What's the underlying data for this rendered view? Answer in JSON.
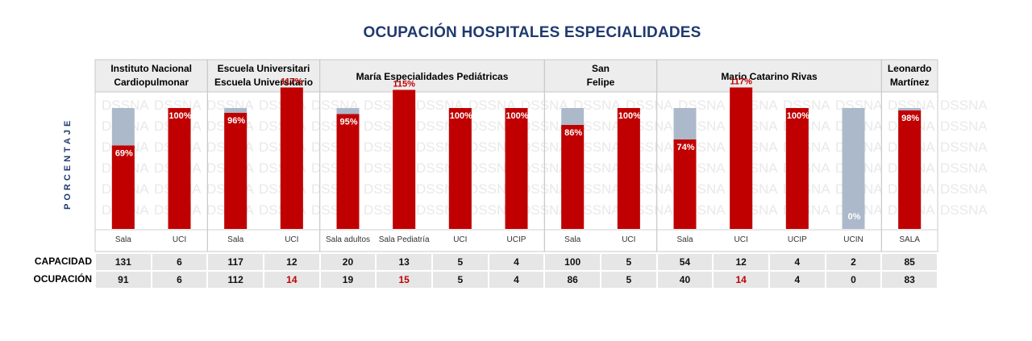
{
  "title": "OCUPACIÓN HOSPITALES ESPECIALIDADES",
  "ylabel": "PORCENTAJE",
  "watermark": "DSSNA",
  "colors": {
    "bar": "#c00000",
    "capacity": "#acb9ca",
    "title": "#1f3a6e",
    "over": "#c00000"
  },
  "table": {
    "capacidad_label": "CAPACIDAD",
    "ocupacion_label": "OCUPACIÓN"
  },
  "chart_data": {
    "type": "bar",
    "ylim": [
      0,
      100
    ],
    "hospitals": [
      {
        "name": "Instituto Nacional Cardiopulmonar",
        "categories": [
          "Sala",
          "UCI"
        ],
        "values": [
          69,
          100
        ],
        "labels": [
          "69%",
          "100%"
        ],
        "capacidad": [
          131,
          6
        ],
        "ocupacion": [
          91,
          6
        ]
      },
      {
        "name": "Escuela Universitario",
        "categories": [
          "Sala",
          "UCI"
        ],
        "values": [
          96,
          117
        ],
        "labels": [
          "96%",
          "117%"
        ],
        "capacidad": [
          117,
          12
        ],
        "ocupacion": [
          112,
          14
        ]
      },
      {
        "name": "María Especialidades Pediátricas",
        "categories": [
          "Sala adultos",
          "Sala Pediatría",
          "UCI",
          "UCIP"
        ],
        "values": [
          95,
          115,
          100,
          100
        ],
        "labels": [
          "95%",
          "115%",
          "100%",
          "100%"
        ],
        "capacidad": [
          20,
          13,
          5,
          4
        ],
        "ocupacion": [
          19,
          15,
          5,
          4
        ]
      },
      {
        "name": "San Felipe",
        "categories": [
          "Sala",
          "UCI"
        ],
        "values": [
          86,
          100
        ],
        "labels": [
          "86%",
          "100%"
        ],
        "capacidad": [
          100,
          5
        ],
        "ocupacion": [
          86,
          5
        ]
      },
      {
        "name": "Mario Catarino Rivas",
        "categories": [
          "Sala",
          "UCI",
          "UCIP",
          "UCIN"
        ],
        "values": [
          74,
          117,
          100,
          0
        ],
        "labels": [
          "74%",
          "117%",
          "100%",
          "0%"
        ],
        "capacidad": [
          54,
          12,
          4,
          2
        ],
        "ocupacion": [
          40,
          14,
          4,
          0
        ]
      },
      {
        "name": "Leonardo Martínez",
        "categories": [
          "SALA"
        ],
        "values": [
          98
        ],
        "labels": [
          "98%"
        ],
        "capacidad": [
          85
        ],
        "ocupacion": [
          83
        ]
      }
    ]
  }
}
